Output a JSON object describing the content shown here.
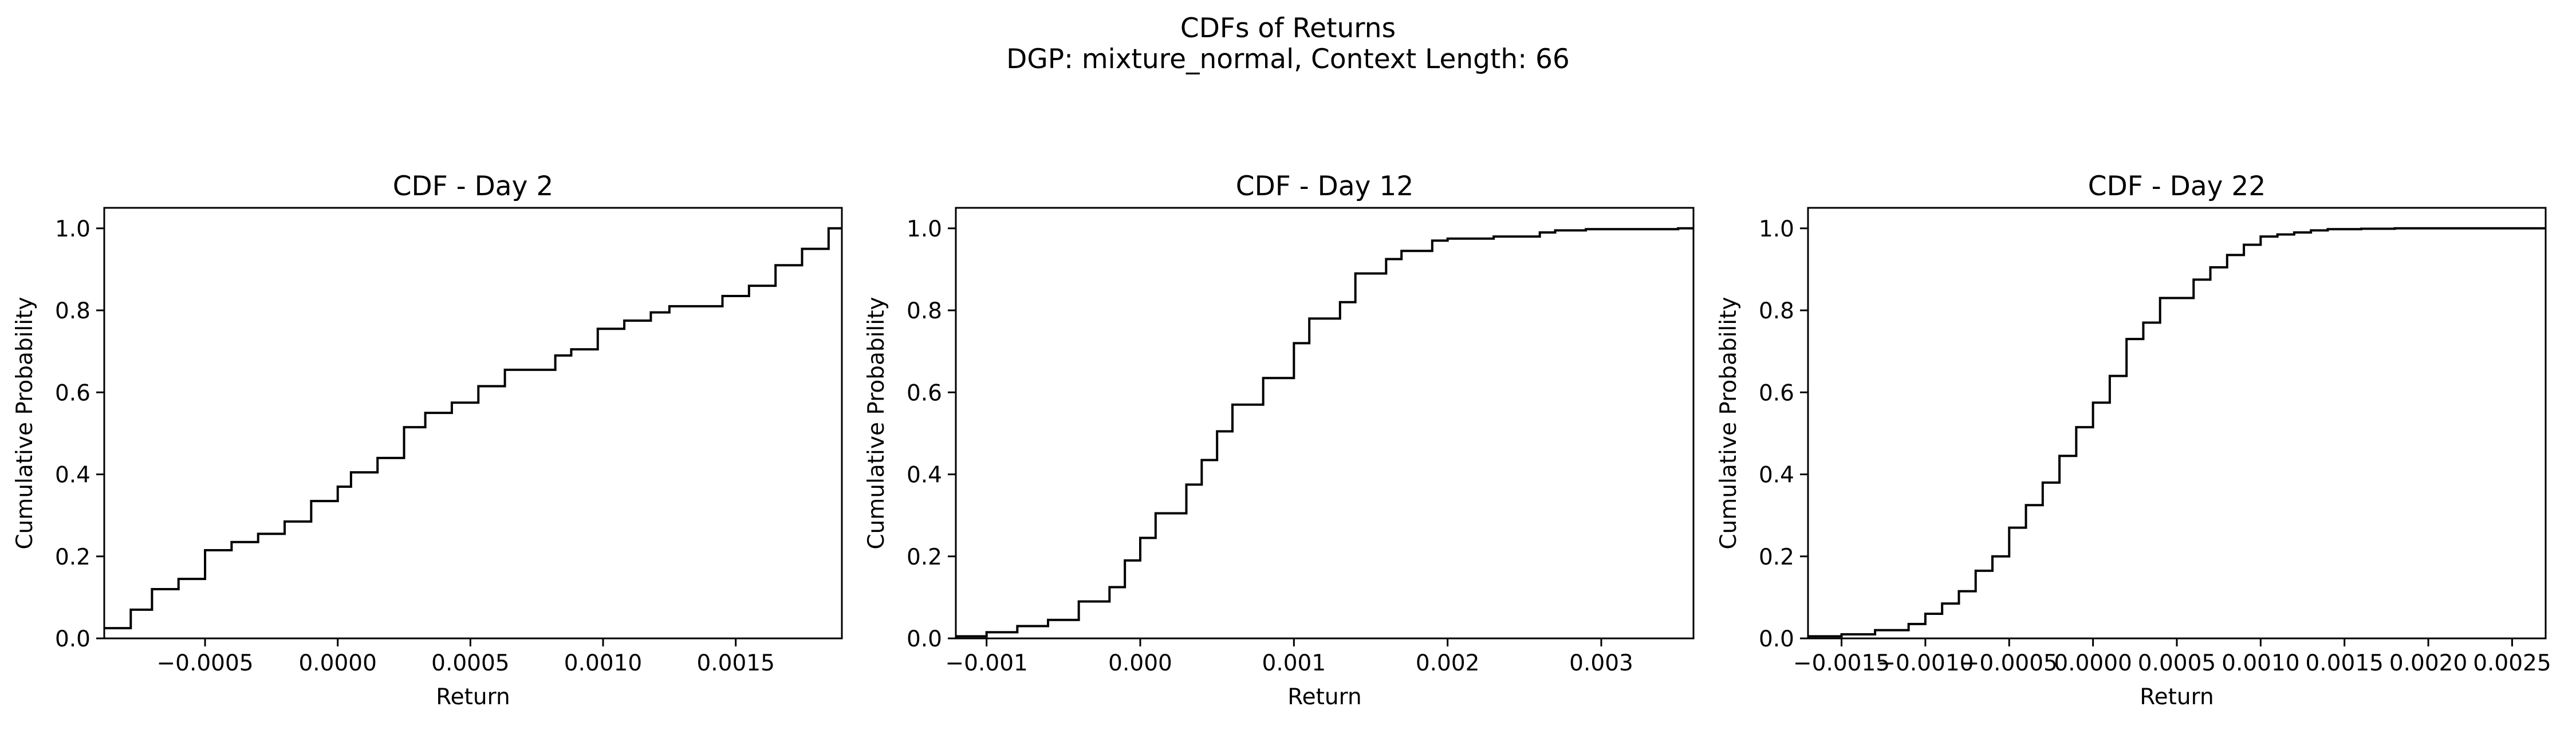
{
  "figure": {
    "title": "CDFs of Returns",
    "subtitle": "DGP: mixture_normal, Context Length: 66"
  },
  "colors": {
    "line": "#000000",
    "axes": "#000000",
    "background": "#ffffff"
  },
  "chart_data": [
    {
      "type": "line",
      "style": "step-post",
      "title": "CDF - Day 2",
      "xlabel": "Return",
      "ylabel": "Cumulative Probability",
      "xlim": [
        -0.00088,
        0.0019
      ],
      "ylim": [
        0.0,
        1.05
      ],
      "xticks": [
        -0.0005,
        0.0,
        0.0005,
        0.001,
        0.0015
      ],
      "xtick_labels": [
        "−0.0005",
        "0.0000",
        "0.0005",
        "0.0010",
        "0.0015"
      ],
      "yticks": [
        0.0,
        0.2,
        0.4,
        0.6,
        0.8,
        1.0
      ],
      "ytick_labels": [
        "0.0",
        "0.2",
        "0.4",
        "0.6",
        "0.8",
        "1.0"
      ],
      "grid": false,
      "x": [
        -0.00088,
        -0.00078,
        -0.0007,
        -0.0006,
        -0.0005,
        -0.0004,
        -0.0003,
        -0.0002,
        -0.0001,
        0.0,
        5e-05,
        0.00015,
        0.00025,
        0.00033,
        0.00043,
        0.00053,
        0.00063,
        0.00082,
        0.00088,
        0.00098,
        0.00108,
        0.00118,
        0.00125,
        0.00145,
        0.00155,
        0.00165,
        0.00175,
        0.00185,
        0.0019
      ],
      "y": [
        0.025,
        0.07,
        0.12,
        0.145,
        0.215,
        0.235,
        0.255,
        0.285,
        0.335,
        0.37,
        0.405,
        0.44,
        0.515,
        0.55,
        0.575,
        0.615,
        0.655,
        0.69,
        0.705,
        0.755,
        0.775,
        0.795,
        0.81,
        0.835,
        0.86,
        0.91,
        0.95,
        1.0,
        1.0
      ]
    },
    {
      "type": "line",
      "style": "step-post",
      "title": "CDF - Day 12",
      "xlabel": "Return",
      "ylabel": "Cumulative Probability",
      "xlim": [
        -0.0012,
        0.0036
      ],
      "ylim": [
        0.0,
        1.05
      ],
      "xticks": [
        -0.001,
        0.0,
        0.001,
        0.002,
        0.003
      ],
      "xtick_labels": [
        "−0.001",
        "0.000",
        "0.001",
        "0.002",
        "0.003"
      ],
      "yticks": [
        0.0,
        0.2,
        0.4,
        0.6,
        0.8,
        1.0
      ],
      "ytick_labels": [
        "0.0",
        "0.2",
        "0.4",
        "0.6",
        "0.8",
        "1.0"
      ],
      "grid": false,
      "x": [
        -0.0012,
        -0.001,
        -0.0008,
        -0.0006,
        -0.0004,
        -0.0002,
        -0.0001,
        0.0,
        0.0001,
        0.0003,
        0.0004,
        0.0005,
        0.0006,
        0.0008,
        0.001,
        0.0011,
        0.0013,
        0.0014,
        0.0016,
        0.0017,
        0.0019,
        0.002,
        0.0023,
        0.0026,
        0.0027,
        0.0029,
        0.0035,
        0.0036
      ],
      "y": [
        0.005,
        0.015,
        0.03,
        0.045,
        0.09,
        0.125,
        0.19,
        0.245,
        0.305,
        0.375,
        0.435,
        0.505,
        0.57,
        0.635,
        0.72,
        0.78,
        0.82,
        0.89,
        0.925,
        0.945,
        0.97,
        0.975,
        0.98,
        0.99,
        0.995,
        0.998,
        1.0,
        1.0
      ]
    },
    {
      "type": "line",
      "style": "step-post",
      "title": "CDF - Day 22",
      "xlabel": "Return",
      "ylabel": "Cumulative Probability",
      "xlim": [
        -0.0017,
        0.0027
      ],
      "ylim": [
        0.0,
        1.05
      ],
      "xticks": [
        -0.0015,
        -0.001,
        -0.0005,
        0.0,
        0.0005,
        0.001,
        0.0015,
        0.002,
        0.0025
      ],
      "xtick_labels": [
        "−0.0015",
        "−0.0010",
        "−0.0005",
        "0.0000",
        "0.0005",
        "0.0010",
        "0.0015",
        "0.0020",
        "0.0025"
      ],
      "yticks": [
        0.0,
        0.2,
        0.4,
        0.6,
        0.8,
        1.0
      ],
      "ytick_labels": [
        "0.0",
        "0.2",
        "0.4",
        "0.6",
        "0.8",
        "1.0"
      ],
      "grid": false,
      "x": [
        -0.0017,
        -0.0015,
        -0.0013,
        -0.0011,
        -0.001,
        -0.0009,
        -0.0008,
        -0.0007,
        -0.0006,
        -0.0005,
        -0.0004,
        -0.0003,
        -0.0002,
        -0.0001,
        0.0,
        0.0001,
        0.0002,
        0.0003,
        0.0004,
        0.0006,
        0.0007,
        0.0008,
        0.0009,
        0.001,
        0.0011,
        0.0012,
        0.0013,
        0.0014,
        0.0016,
        0.0018,
        0.0019,
        0.002,
        0.0026,
        0.0027
      ],
      "y": [
        0.005,
        0.01,
        0.02,
        0.035,
        0.06,
        0.085,
        0.115,
        0.165,
        0.2,
        0.27,
        0.325,
        0.38,
        0.445,
        0.515,
        0.575,
        0.64,
        0.73,
        0.77,
        0.83,
        0.875,
        0.905,
        0.935,
        0.96,
        0.98,
        0.985,
        0.99,
        0.995,
        0.998,
        0.999,
        1.0,
        1.0,
        1.0,
        1.0,
        1.0
      ]
    }
  ]
}
